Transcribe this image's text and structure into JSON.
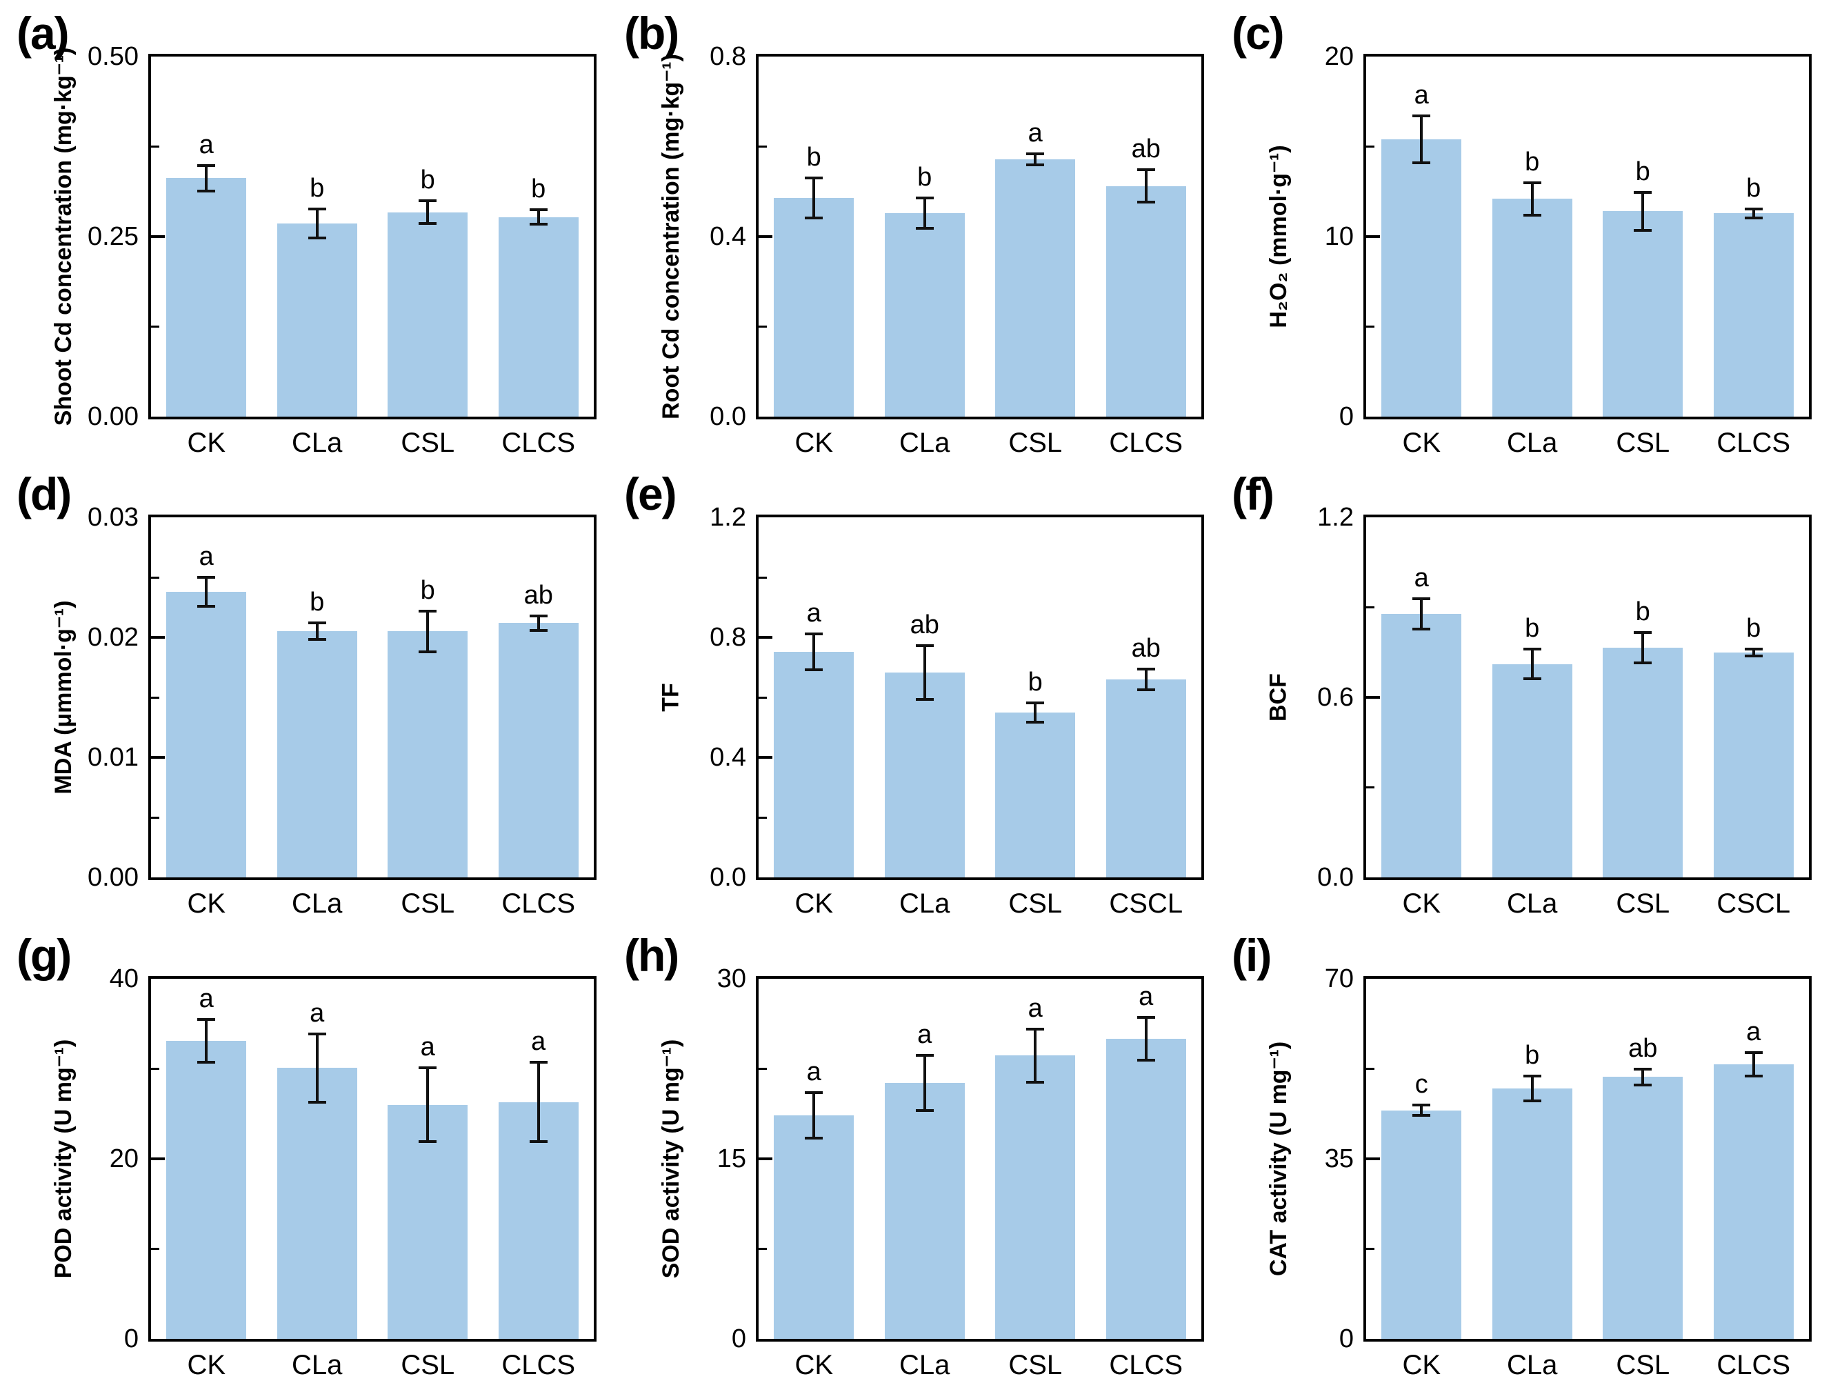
{
  "figure": {
    "bar_fill": "#A7CBE8",
    "error_color": "#111111",
    "axis_color": "#000000",
    "text_color": "#000000",
    "background": "#ffffff"
  },
  "chart_data": [
    {
      "type": "bar",
      "panel_label": "(a)",
      "ylabel": "Shoot Cd concentration (mg·kg⁻¹)",
      "categories": [
        "CK",
        "CLa",
        "CSL",
        "CLCS"
      ],
      "values": [
        0.331,
        0.268,
        0.284,
        0.277
      ],
      "errors": [
        0.018,
        0.02,
        0.016,
        0.01
      ],
      "sig_letters": [
        "a",
        "b",
        "b",
        "b"
      ],
      "ylim": [
        0,
        0.5
      ],
      "ytick_values": [
        0,
        0.25,
        0.5
      ],
      "ytick_labels": [
        "0.00",
        "0.25",
        "0.50"
      ],
      "minor_ytick_values": [
        0.125,
        0.375
      ],
      "grid": false,
      "legend": null
    },
    {
      "type": "bar",
      "panel_label": "(b)",
      "ylabel": "Root Cd concentration (mg·kg⁻¹)",
      "categories": [
        "CK",
        "CLa",
        "CSL",
        "CLCS"
      ],
      "values": [
        0.486,
        0.452,
        0.572,
        0.512
      ],
      "errors": [
        0.044,
        0.034,
        0.012,
        0.036
      ],
      "sig_letters": [
        "b",
        "b",
        "a",
        "ab"
      ],
      "ylim": [
        0,
        0.8
      ],
      "ytick_values": [
        0,
        0.4,
        0.8
      ],
      "ytick_labels": [
        "0.0",
        "0.4",
        "0.8"
      ],
      "minor_ytick_values": [
        0.2,
        0.6
      ],
      "grid": false,
      "legend": null
    },
    {
      "type": "bar",
      "panel_label": "(c)",
      "ylabel": "H₂O₂ (mmol·g⁻¹)",
      "categories": [
        "CK",
        "CLa",
        "CSL",
        "CLCS"
      ],
      "values": [
        15.4,
        12.1,
        11.4,
        11.3
      ],
      "errors": [
        1.3,
        0.9,
        1.05,
        0.25
      ],
      "sig_letters": [
        "a",
        "b",
        "b",
        "b"
      ],
      "ylim": [
        0,
        20
      ],
      "ytick_values": [
        0,
        10,
        20
      ],
      "ytick_labels": [
        "0",
        "10",
        "20"
      ],
      "minor_ytick_values": [
        5,
        15
      ],
      "grid": false,
      "legend": null
    },
    {
      "type": "bar",
      "panel_label": "(d)",
      "ylabel": "MDA (μmmol·g⁻¹)",
      "categories": [
        "CK",
        "CLa",
        "CSL",
        "CLCS"
      ],
      "values": [
        0.0238,
        0.0205,
        0.0205,
        0.0212
      ],
      "errors": [
        0.0012,
        0.0007,
        0.0017,
        0.0006
      ],
      "sig_letters": [
        "a",
        "b",
        "b",
        "ab"
      ],
      "ylim": [
        0,
        0.03
      ],
      "ytick_values": [
        0,
        0.01,
        0.02,
        0.03
      ],
      "ytick_labels": [
        "0.00",
        "0.01",
        "0.02",
        "0.03"
      ],
      "minor_ytick_values": [
        0.005,
        0.015,
        0.025
      ],
      "grid": false,
      "legend": null
    },
    {
      "type": "bar",
      "panel_label": "(e)",
      "ylabel": "TF",
      "categories": [
        "CK",
        "CLa",
        "CSL",
        "CSCL"
      ],
      "values": [
        0.752,
        0.683,
        0.549,
        0.66
      ],
      "errors": [
        0.06,
        0.09,
        0.032,
        0.035
      ],
      "sig_letters": [
        "a",
        "ab",
        "b",
        "ab"
      ],
      "ylim": [
        0,
        1.2
      ],
      "ytick_values": [
        0,
        0.4,
        0.8,
        1.2
      ],
      "ytick_labels": [
        "0.0",
        "0.4",
        "0.8",
        "1.2"
      ],
      "minor_ytick_values": [
        0.2,
        0.6,
        1.0
      ],
      "grid": false,
      "legend": null
    },
    {
      "type": "bar",
      "panel_label": "(f)",
      "ylabel": "BCF",
      "categories": [
        "CK",
        "CLa",
        "CSL",
        "CSCL"
      ],
      "values": [
        0.878,
        0.711,
        0.766,
        0.75
      ],
      "errors": [
        0.05,
        0.05,
        0.05,
        0.012
      ],
      "sig_letters": [
        "a",
        "b",
        "b",
        "b"
      ],
      "ylim": [
        0,
        1.2
      ],
      "ytick_values": [
        0,
        0.6,
        1.2
      ],
      "ytick_labels": [
        "0.0",
        "0.6",
        "1.2"
      ],
      "minor_ytick_values": [
        0.3,
        0.9
      ],
      "grid": false,
      "legend": null
    },
    {
      "type": "bar",
      "panel_label": "(g)",
      "ylabel": "POD activity (U mg⁻¹)",
      "categories": [
        "CK",
        "CLa",
        "CSL",
        "CLCS"
      ],
      "values": [
        33.1,
        30.1,
        26.0,
        26.3
      ],
      "errors": [
        2.4,
        3.8,
        4.1,
        4.4
      ],
      "sig_letters": [
        "a",
        "a",
        "a",
        "a"
      ],
      "ylim": [
        0,
        40
      ],
      "ytick_values": [
        0,
        20,
        40
      ],
      "ytick_labels": [
        "0",
        "20",
        "40"
      ],
      "minor_ytick_values": [
        10,
        30
      ],
      "grid": false,
      "legend": null
    },
    {
      "type": "bar",
      "panel_label": "(h)",
      "ylabel": "SOD activity (U mg⁻¹)",
      "categories": [
        "CK",
        "CLa",
        "CSL",
        "CLCS"
      ],
      "values": [
        18.6,
        21.3,
        23.6,
        25.0
      ],
      "errors": [
        1.9,
        2.3,
        2.2,
        1.8
      ],
      "sig_letters": [
        "a",
        "a",
        "a",
        "a"
      ],
      "ylim": [
        0,
        30
      ],
      "ytick_values": [
        0,
        15,
        30
      ],
      "ytick_labels": [
        "0",
        "15",
        "30"
      ],
      "minor_ytick_values": [
        7.5,
        22.5
      ],
      "grid": false,
      "legend": null
    },
    {
      "type": "bar",
      "panel_label": "(i)",
      "ylabel": "CAT activity (U mg⁻¹)",
      "categories": [
        "CK",
        "CLa",
        "CSL",
        "CLCS"
      ],
      "values": [
        44.4,
        48.7,
        50.9,
        53.4
      ],
      "errors": [
        1.0,
        2.4,
        1.5,
        2.3
      ],
      "sig_letters": [
        "c",
        "b",
        "ab",
        "a"
      ],
      "ylim": [
        0,
        70
      ],
      "ytick_values": [
        0,
        35,
        70
      ],
      "ytick_labels": [
        "0",
        "35",
        "70"
      ],
      "minor_ytick_values": [
        17.5,
        52.5
      ],
      "grid": false,
      "legend": null
    }
  ]
}
